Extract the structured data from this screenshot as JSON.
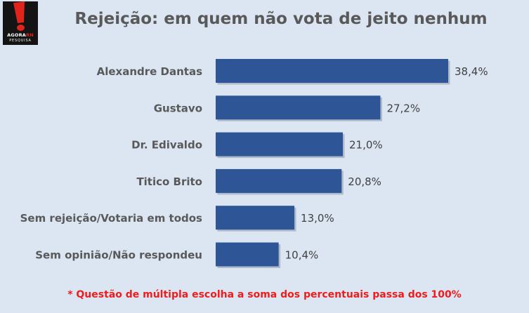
{
  "logo": {
    "main_prefix": "AGORA",
    "main_highlight": "RN",
    "sub": "PESQUISA"
  },
  "chart_data": {
    "type": "bar",
    "orientation": "horizontal",
    "title": "Rejeição: em quem não vota de jeito nenhum",
    "categories": [
      "Alexandre Dantas",
      "Gustavo",
      "Dr. Edivaldo",
      "Titico Brito",
      "Sem rejeição/Votaria em todos",
      "Sem opinião/Não respondeu"
    ],
    "values": [
      38.4,
      27.2,
      21.0,
      20.8,
      13.0,
      10.4
    ],
    "data_labels": [
      "38,4%",
      "27,2%",
      "21,0%",
      "20,8%",
      "13,0%",
      "10,4%"
    ],
    "xlim": [
      0,
      38.4
    ],
    "grid": false,
    "legend": "none",
    "bar_color": "#2e5596"
  },
  "footnote": "* Questão de múltipla escolha a soma dos percentuais passa dos 100%"
}
